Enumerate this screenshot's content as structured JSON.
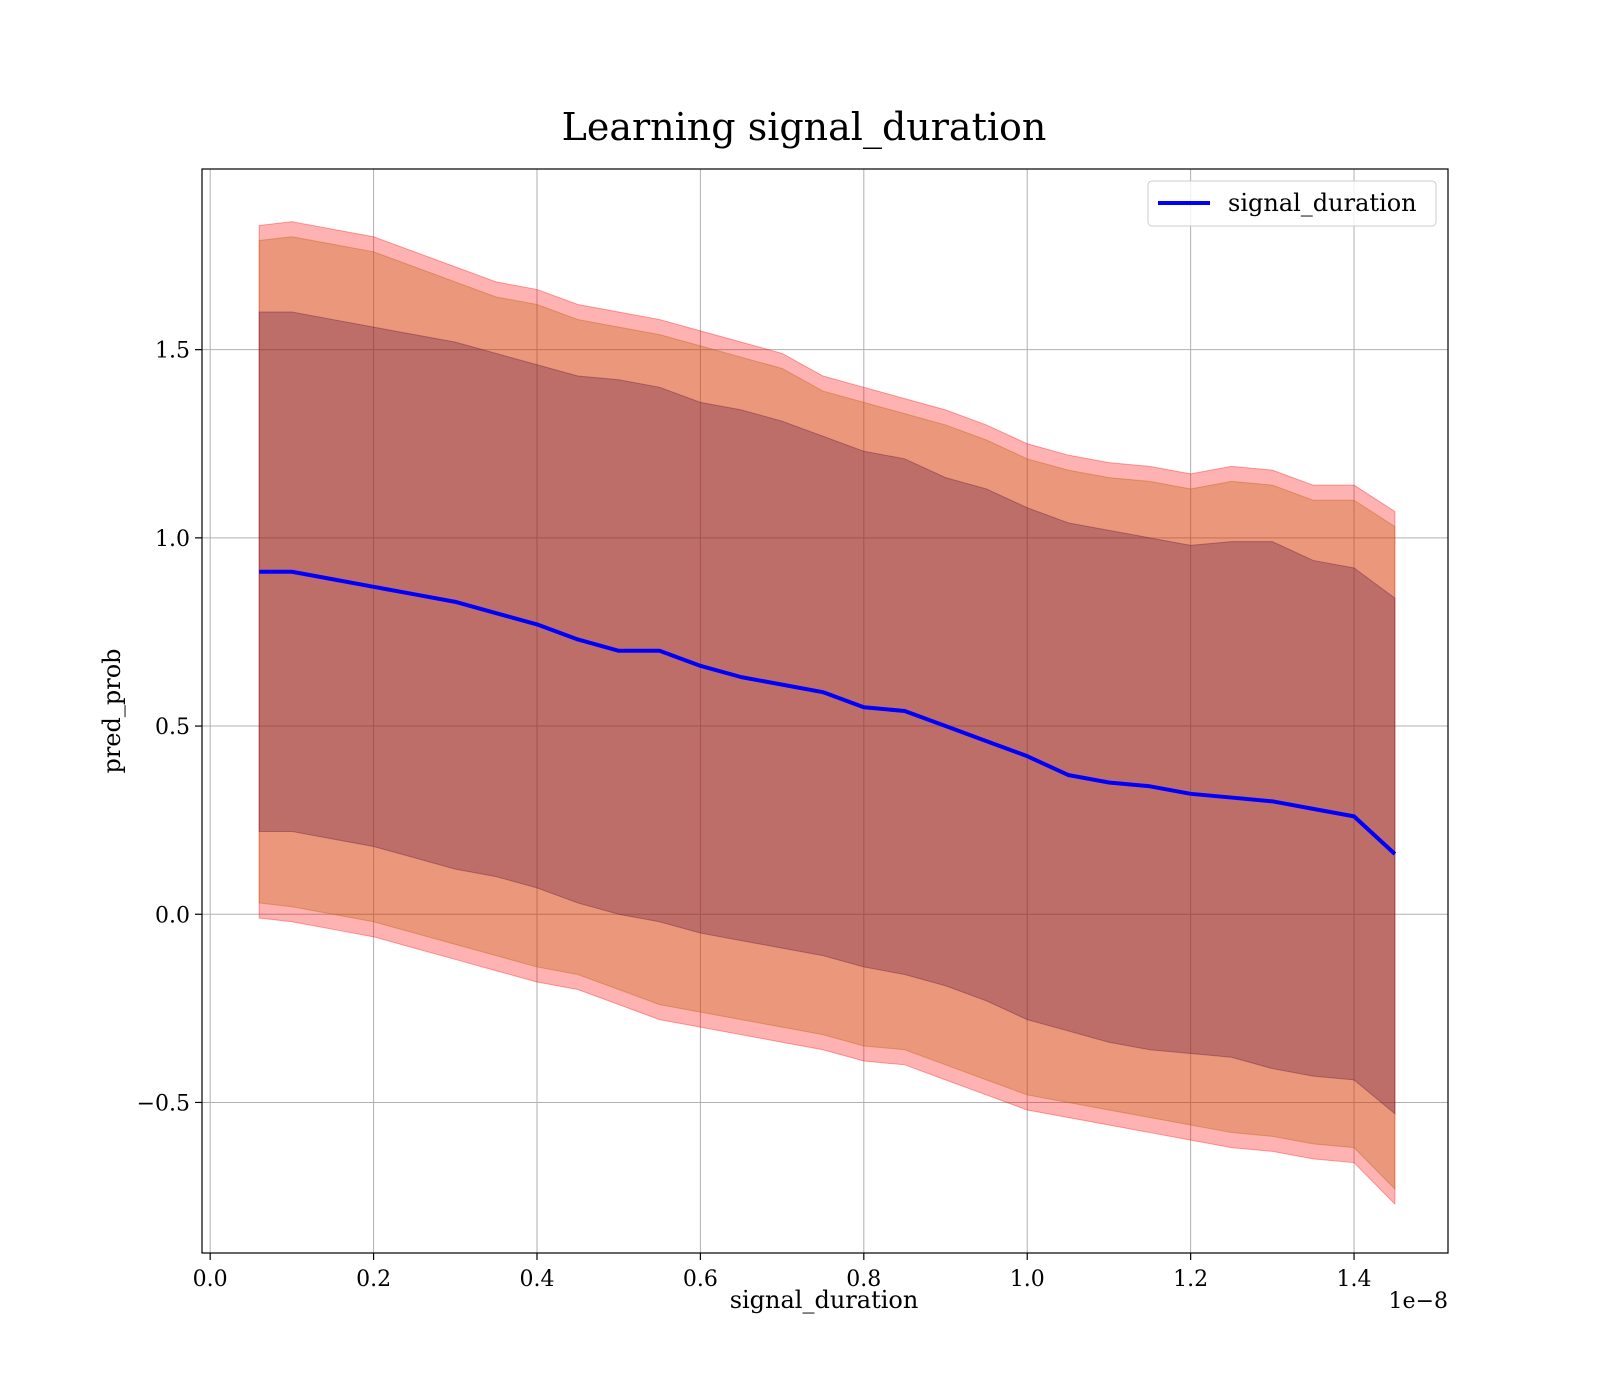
{
  "chart_data": {
    "type": "area",
    "title": "Learning signal_duration",
    "xlabel": "signal_duration",
    "ylabel": "pred_prob",
    "x_offset_label": "1e−8",
    "xlim": [
      -0.01,
      1.515
    ],
    "ylim": [
      -0.9,
      1.98
    ],
    "xticks": [
      0.0,
      0.2,
      0.4,
      0.6,
      0.8,
      1.0,
      1.2,
      1.4
    ],
    "xtick_labels": [
      "0.0",
      "0.2",
      "0.4",
      "0.6",
      "0.8",
      "1.0",
      "1.2",
      "1.4"
    ],
    "yticks": [
      -0.5,
      0.0,
      0.5,
      1.0,
      1.5
    ],
    "ytick_labels": [
      "−0.5",
      "0.0",
      "0.5",
      "1.0",
      "1.5"
    ],
    "grid": true,
    "legend_position": "top-right",
    "line_color": "#0000ff",
    "band_colors": [
      "#ff0000",
      "#b85a00",
      "#5a0f3c"
    ],
    "x": [
      0.06,
      0.1,
      0.15,
      0.2,
      0.25,
      0.3,
      0.35,
      0.4,
      0.45,
      0.5,
      0.55,
      0.6,
      0.65,
      0.7,
      0.75,
      0.8,
      0.85,
      0.9,
      0.95,
      1.0,
      1.05,
      1.1,
      1.15,
      1.2,
      1.25,
      1.3,
      1.35,
      1.4,
      1.45
    ],
    "series": [
      {
        "name": "signal_duration",
        "values": [
          0.91,
          0.91,
          0.89,
          0.87,
          0.85,
          0.83,
          0.8,
          0.77,
          0.73,
          0.7,
          0.7,
          0.66,
          0.63,
          0.61,
          0.59,
          0.55,
          0.54,
          0.5,
          0.46,
          0.42,
          0.37,
          0.35,
          0.34,
          0.32,
          0.31,
          0.3,
          0.28,
          0.26,
          0.16
        ]
      }
    ],
    "bands": [
      {
        "lower": [
          -0.01,
          -0.02,
          -0.04,
          -0.06,
          -0.09,
          -0.12,
          -0.15,
          -0.18,
          -0.2,
          -0.24,
          -0.28,
          -0.3,
          -0.32,
          -0.34,
          -0.36,
          -0.39,
          -0.4,
          -0.44,
          -0.48,
          -0.52,
          -0.54,
          -0.56,
          -0.58,
          -0.6,
          -0.62,
          -0.63,
          -0.65,
          -0.66,
          -0.77
        ],
        "upper": [
          1.83,
          1.84,
          1.82,
          1.8,
          1.76,
          1.72,
          1.68,
          1.66,
          1.62,
          1.6,
          1.58,
          1.55,
          1.52,
          1.49,
          1.43,
          1.4,
          1.37,
          1.34,
          1.3,
          1.25,
          1.22,
          1.2,
          1.19,
          1.17,
          1.19,
          1.18,
          1.14,
          1.14,
          1.07
        ]
      },
      {
        "lower": [
          0.03,
          0.02,
          0.0,
          -0.02,
          -0.05,
          -0.08,
          -0.11,
          -0.14,
          -0.16,
          -0.2,
          -0.24,
          -0.26,
          -0.28,
          -0.3,
          -0.32,
          -0.35,
          -0.36,
          -0.4,
          -0.44,
          -0.48,
          -0.5,
          -0.52,
          -0.54,
          -0.56,
          -0.58,
          -0.59,
          -0.61,
          -0.62,
          -0.73
        ],
        "upper": [
          1.79,
          1.8,
          1.78,
          1.76,
          1.72,
          1.68,
          1.64,
          1.62,
          1.58,
          1.56,
          1.54,
          1.51,
          1.48,
          1.45,
          1.39,
          1.36,
          1.33,
          1.3,
          1.26,
          1.21,
          1.18,
          1.16,
          1.15,
          1.13,
          1.15,
          1.14,
          1.1,
          1.1,
          1.03
        ]
      },
      {
        "lower": [
          0.22,
          0.22,
          0.2,
          0.18,
          0.15,
          0.12,
          0.1,
          0.07,
          0.03,
          0.0,
          -0.02,
          -0.05,
          -0.07,
          -0.09,
          -0.11,
          -0.14,
          -0.16,
          -0.19,
          -0.23,
          -0.28,
          -0.31,
          -0.34,
          -0.36,
          -0.37,
          -0.38,
          -0.41,
          -0.43,
          -0.44,
          -0.53
        ],
        "upper": [
          1.6,
          1.6,
          1.58,
          1.56,
          1.54,
          1.52,
          1.49,
          1.46,
          1.43,
          1.42,
          1.4,
          1.36,
          1.34,
          1.31,
          1.27,
          1.23,
          1.21,
          1.16,
          1.13,
          1.08,
          1.04,
          1.02,
          1.0,
          0.98,
          0.99,
          0.99,
          0.94,
          0.92,
          0.84
        ]
      }
    ]
  }
}
